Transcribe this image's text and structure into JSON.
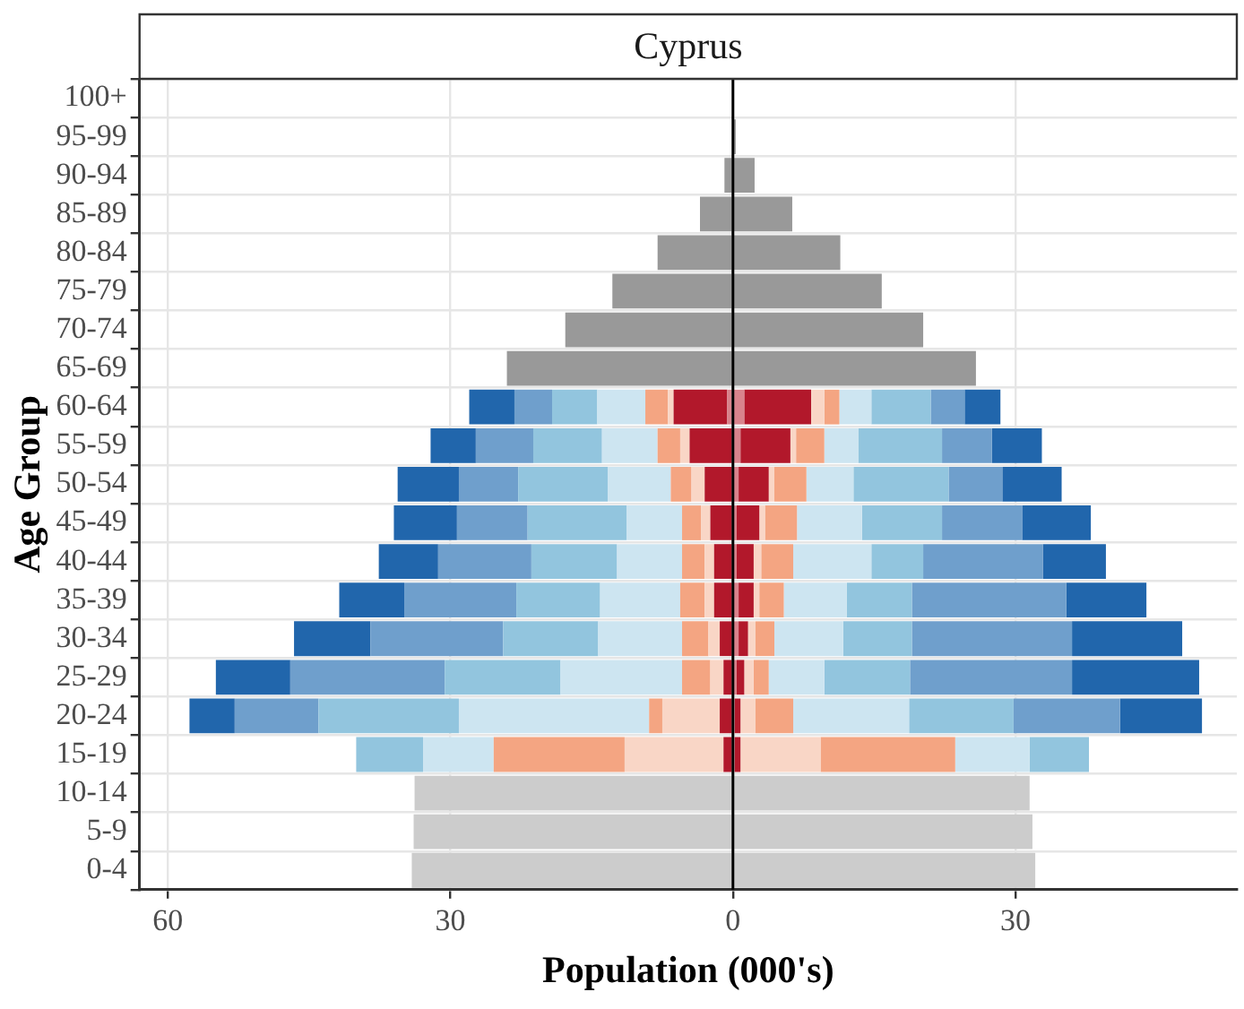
{
  "chart_data": {
    "type": "bar",
    "orientation": "horizontal",
    "stacked": true,
    "title": "Cyprus",
    "xlabel": "Population (000's)",
    "ylabel": "Age Group",
    "categories": [
      "100+",
      "95-99",
      "90-94",
      "85-89",
      "80-84",
      "75-79",
      "70-74",
      "65-69",
      "60-64",
      "55-59",
      "50-54",
      "45-49",
      "40-44",
      "35-39",
      "30-34",
      "25-29",
      "20-24",
      "15-19",
      "10-14",
      "5-9",
      "0-4"
    ],
    "xlim": [
      -63,
      53.5
    ],
    "xticks": [
      {
        "value": -60,
        "label": "60"
      },
      {
        "value": -30,
        "label": "30"
      },
      0,
      30
    ],
    "grid": true,
    "ref_lines": [
      {
        "axis": "x",
        "value": 0,
        "color": "#000000"
      }
    ],
    "series": [
      {
        "color": "#d9838c",
        "values": [
          null,
          null,
          null,
          null,
          null,
          null,
          null,
          null,
          -0.6,
          null,
          null,
          null,
          null,
          null,
          null,
          null,
          null,
          null,
          null,
          null,
          null
        ]
      },
      {
        "color": "#b2182b",
        "values": [
          null,
          null,
          null,
          null,
          null,
          null,
          null,
          null,
          -5.7,
          -4.6,
          -3.0,
          -2.4,
          -2.0,
          -2.0,
          -1.4,
          -1.0,
          -1.4,
          -1.0,
          null,
          null,
          null
        ]
      },
      {
        "color": "#f9d6c6",
        "values": [
          null,
          null,
          null,
          null,
          null,
          null,
          null,
          null,
          -0.6,
          -1.0,
          -1.4,
          -1.0,
          -1.0,
          -1.0,
          -1.2,
          -1.4,
          -6.1,
          -10.5,
          null,
          null,
          null
        ]
      },
      {
        "color": "#f4a582",
        "values": [
          null,
          null,
          null,
          null,
          null,
          null,
          null,
          null,
          -2.4,
          -2.4,
          -2.2,
          -2.0,
          -2.4,
          -2.6,
          -2.8,
          -3.0,
          -1.4,
          -13.9,
          null,
          null,
          null
        ]
      },
      {
        "color": "#cde5f1",
        "values": [
          null,
          null,
          null,
          null,
          null,
          null,
          null,
          null,
          -5.1,
          -5.9,
          -6.7,
          -5.9,
          -6.9,
          -8.5,
          -8.9,
          -12.9,
          -20.2,
          -7.5,
          null,
          null,
          null
        ]
      },
      {
        "color": "#92c5de",
        "values": [
          null,
          null,
          null,
          null,
          null,
          null,
          null,
          null,
          -4.8,
          -7.3,
          -9.5,
          -10.5,
          -9.1,
          -8.9,
          -10.1,
          -12.3,
          -14.9,
          -7.1,
          null,
          null,
          null
        ]
      },
      {
        "color": "#6f9fcc",
        "values": [
          null,
          null,
          null,
          null,
          null,
          null,
          null,
          null,
          -4.0,
          -6.1,
          -6.3,
          -7.5,
          -9.9,
          -11.9,
          -14.1,
          -16.4,
          -8.9,
          null,
          null,
          null,
          null
        ]
      },
      {
        "color": "#2166ac",
        "values": [
          null,
          null,
          null,
          null,
          null,
          null,
          null,
          null,
          -4.8,
          -4.8,
          -6.5,
          -6.7,
          -6.3,
          -6.9,
          -8.1,
          -7.9,
          -4.8,
          null,
          null,
          null,
          null
        ]
      },
      {
        "color": "#d9838c",
        "values": [
          null,
          null,
          null,
          null,
          null,
          null,
          null,
          null,
          1.2,
          0.8,
          0.6,
          0.4,
          0.4,
          0.6,
          0.6,
          0.4,
          0.2,
          0.2,
          null,
          null,
          null
        ]
      },
      {
        "color": "#b2182b",
        "values": [
          null,
          null,
          null,
          null,
          null,
          null,
          null,
          null,
          7.1,
          5.3,
          3.2,
          2.4,
          1.8,
          1.6,
          1.0,
          0.8,
          0.6,
          0.6,
          null,
          null,
          null
        ]
      },
      {
        "color": "#f9d6c6",
        "values": [
          null,
          null,
          null,
          null,
          null,
          null,
          null,
          null,
          1.4,
          0.6,
          0.6,
          0.6,
          0.8,
          0.6,
          0.8,
          1.0,
          1.6,
          8.5,
          null,
          null,
          null
        ]
      },
      {
        "color": "#f4a582",
        "values": [
          null,
          null,
          null,
          null,
          null,
          null,
          null,
          null,
          1.6,
          3.0,
          3.4,
          3.4,
          3.4,
          2.6,
          2.0,
          1.6,
          4.0,
          14.3,
          null,
          null,
          null
        ]
      },
      {
        "color": "#cde5f1",
        "values": [
          null,
          null,
          null,
          null,
          null,
          null,
          null,
          null,
          3.4,
          3.6,
          5.0,
          6.9,
          8.3,
          6.7,
          7.3,
          5.9,
          12.3,
          7.9,
          null,
          null,
          null
        ]
      },
      {
        "color": "#92c5de",
        "values": [
          null,
          null,
          null,
          null,
          null,
          null,
          null,
          null,
          6.3,
          8.9,
          10.1,
          8.5,
          5.5,
          6.9,
          7.3,
          9.1,
          11.1,
          6.3,
          null,
          null,
          null
        ]
      },
      {
        "color": "#6f9fcc",
        "values": [
          null,
          null,
          null,
          null,
          null,
          null,
          null,
          null,
          3.6,
          5.3,
          5.7,
          8.5,
          12.7,
          16.4,
          17.0,
          17.2,
          11.3,
          null,
          null,
          null,
          null
        ]
      },
      {
        "color": "#2166ac",
        "values": [
          null,
          null,
          null,
          null,
          null,
          null,
          null,
          null,
          3.8,
          5.3,
          6.3,
          7.3,
          6.7,
          8.5,
          11.7,
          13.5,
          8.7,
          null,
          null,
          null,
          null
        ]
      },
      {
        "color": "#999999",
        "values": [
          null,
          null,
          -0.9,
          -3.5,
          -8.0,
          -12.8,
          -17.8,
          -24.0,
          null,
          null,
          null,
          null,
          null,
          null,
          null,
          null,
          null,
          null,
          null,
          null,
          null
        ]
      },
      {
        "color": "#999999",
        "values": [
          null,
          0.3,
          2.3,
          6.3,
          11.4,
          15.8,
          20.2,
          25.8,
          null,
          null,
          null,
          null,
          null,
          null,
          null,
          null,
          null,
          null,
          null,
          null,
          null
        ]
      },
      {
        "color": "#cccccc",
        "values": [
          null,
          null,
          null,
          null,
          null,
          null,
          null,
          null,
          null,
          null,
          null,
          null,
          null,
          null,
          null,
          null,
          null,
          null,
          -33.8,
          -33.9,
          -34.1
        ]
      },
      {
        "color": "#cccccc",
        "values": [
          null,
          null,
          null,
          null,
          null,
          null,
          null,
          null,
          null,
          null,
          null,
          null,
          null,
          null,
          null,
          null,
          null,
          null,
          31.5,
          31.8,
          32.1
        ]
      }
    ]
  }
}
